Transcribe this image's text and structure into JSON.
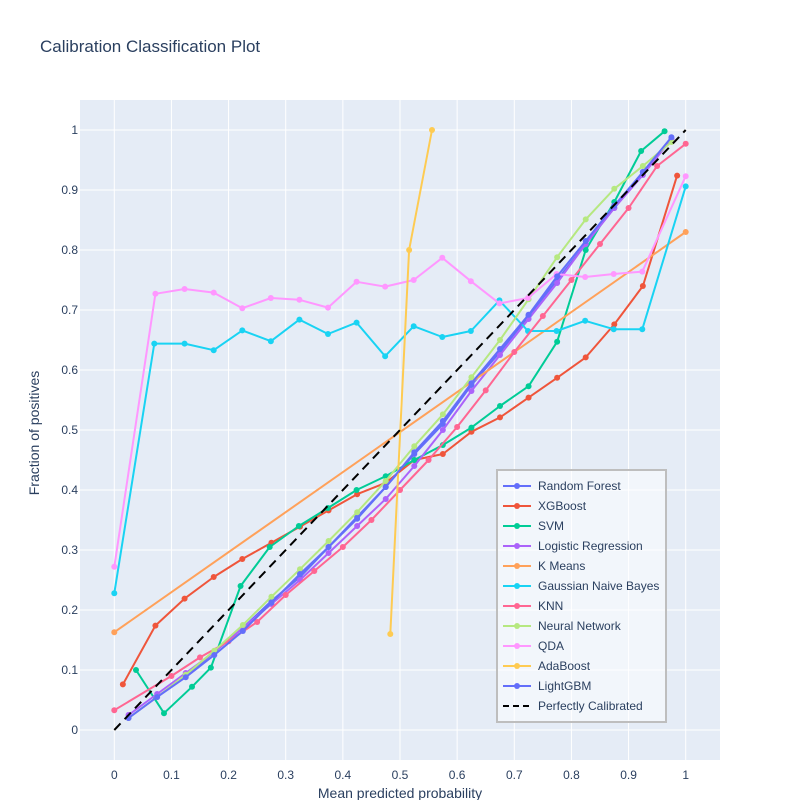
{
  "chart_data": {
    "type": "line",
    "title": "Calibration Classification Plot",
    "xlabel": "Mean predicted probability",
    "ylabel": "Fraction of positives",
    "xlim": [
      -0.06,
      1.06
    ],
    "ylim": [
      -0.05,
      1.05
    ],
    "xticks": [
      0,
      0.1,
      0.2,
      0.3,
      0.4,
      0.5,
      0.6,
      0.7,
      0.8,
      0.9,
      1
    ],
    "xtick_labels": [
      "0",
      "0.1",
      "0.2",
      "0.3",
      "0.4",
      "0.5",
      "0.6",
      "0.7",
      "0.8",
      "0.9",
      "1"
    ],
    "yticks": [
      0,
      0.1,
      0.2,
      0.3,
      0.4,
      0.5,
      0.6,
      0.7,
      0.8,
      0.9,
      1
    ],
    "ytick_labels": [
      "0",
      "0.1",
      "0.2",
      "0.3",
      "0.4",
      "0.5",
      "0.6",
      "0.7",
      "0.8",
      "0.9",
      "1"
    ],
    "grid": true,
    "legend_position": "bottom-right inside plot",
    "background_color": "#e5ecf6",
    "series": [
      {
        "name": "Random Forest",
        "color": "#636efa",
        "x": [
          0.025,
          0.075,
          0.125,
          0.175,
          0.225,
          0.275,
          0.325,
          0.375,
          0.425,
          0.475,
          0.525,
          0.575,
          0.625,
          0.675,
          0.725,
          0.775,
          0.825,
          0.875,
          0.925,
          0.975
        ],
        "y": [
          0.02,
          0.055,
          0.09,
          0.13,
          0.17,
          0.215,
          0.255,
          0.305,
          0.355,
          0.405,
          0.46,
          0.51,
          0.575,
          0.63,
          0.69,
          0.75,
          0.81,
          0.87,
          0.93,
          0.985
        ]
      },
      {
        "name": "XGBoost",
        "color": "#EF553B",
        "x": [
          0.015,
          0.072,
          0.123,
          0.174,
          0.224,
          0.275,
          0.325,
          0.375,
          0.425,
          0.475,
          0.525,
          0.575,
          0.625,
          0.675,
          0.725,
          0.775,
          0.825,
          0.875,
          0.925,
          0.985
        ],
        "y": [
          0.076,
          0.174,
          0.219,
          0.255,
          0.285,
          0.312,
          0.339,
          0.366,
          0.393,
          0.412,
          0.45,
          0.46,
          0.497,
          0.521,
          0.554,
          0.587,
          0.621,
          0.676,
          0.74,
          0.924
        ]
      },
      {
        "name": "SVM",
        "color": "#00cc96",
        "x": [
          0.038,
          0.087,
          0.136,
          0.169,
          0.221,
          0.272,
          0.323,
          0.374,
          0.424,
          0.475,
          0.525,
          0.575,
          0.625,
          0.675,
          0.725,
          0.775,
          0.825,
          0.875,
          0.922,
          0.963
        ],
        "y": [
          0.1,
          0.028,
          0.072,
          0.104,
          0.24,
          0.305,
          0.34,
          0.37,
          0.4,
          0.423,
          0.45,
          0.475,
          0.504,
          0.54,
          0.573,
          0.647,
          0.8,
          0.88,
          0.965,
          0.998
        ]
      },
      {
        "name": "Logistic Regression",
        "color": "#ab63fa",
        "x": [
          0.025,
          0.075,
          0.125,
          0.175,
          0.225,
          0.275,
          0.325,
          0.375,
          0.425,
          0.475,
          0.525,
          0.575,
          0.625,
          0.675,
          0.725,
          0.775,
          0.825,
          0.875,
          0.925,
          0.975
        ],
        "y": [
          0.025,
          0.06,
          0.095,
          0.13,
          0.17,
          0.21,
          0.25,
          0.295,
          0.34,
          0.385,
          0.44,
          0.5,
          0.565,
          0.625,
          0.685,
          0.745,
          0.81,
          0.87,
          0.925,
          0.985
        ]
      },
      {
        "name": "K Means",
        "color": "#FFA15A",
        "x": [
          0,
          1
        ],
        "y": [
          0.163,
          0.83
        ]
      },
      {
        "name": "Gaussian Naive Bayes",
        "color": "#19d3f3",
        "x": [
          0,
          0.07,
          0.123,
          0.174,
          0.224,
          0.274,
          0.324,
          0.374,
          0.424,
          0.474,
          0.524,
          0.574,
          0.624,
          0.674,
          0.724,
          0.774,
          0.824,
          0.874,
          0.924,
          1
        ],
        "y": [
          0.228,
          0.644,
          0.644,
          0.633,
          0.666,
          0.648,
          0.684,
          0.66,
          0.679,
          0.623,
          0.673,
          0.655,
          0.665,
          0.716,
          0.665,
          0.665,
          0.682,
          0.668,
          0.668,
          0.906
        ]
      },
      {
        "name": "KNN",
        "color": "#FF6692",
        "x": [
          0,
          0.1,
          0.15,
          0.2,
          0.25,
          0.3,
          0.35,
          0.4,
          0.45,
          0.5,
          0.55,
          0.6,
          0.65,
          0.7,
          0.75,
          0.8,
          0.85,
          0.9,
          0.95,
          1
        ],
        "y": [
          0.033,
          0.09,
          0.121,
          0.148,
          0.18,
          0.225,
          0.265,
          0.305,
          0.35,
          0.4,
          0.45,
          0.505,
          0.566,
          0.63,
          0.69,
          0.75,
          0.81,
          0.87,
          0.94,
          0.977
        ]
      },
      {
        "name": "Neural Network",
        "color": "#B6E880",
        "x": [
          0.025,
          0.075,
          0.125,
          0.175,
          0.225,
          0.275,
          0.325,
          0.375,
          0.425,
          0.475,
          0.525,
          0.575,
          0.625,
          0.675,
          0.725,
          0.775,
          0.825,
          0.875,
          0.925,
          0.975
        ],
        "y": [
          0.02,
          0.055,
          0.092,
          0.132,
          0.175,
          0.222,
          0.268,
          0.315,
          0.363,
          0.415,
          0.473,
          0.526,
          0.588,
          0.65,
          0.718,
          0.788,
          0.851,
          0.902,
          0.94,
          0.98
        ]
      },
      {
        "name": "QDA",
        "color": "#FF97FF",
        "x": [
          0,
          0.072,
          0.123,
          0.174,
          0.224,
          0.274,
          0.324,
          0.374,
          0.424,
          0.474,
          0.524,
          0.574,
          0.624,
          0.674,
          0.724,
          0.774,
          0.824,
          0.874,
          0.924,
          1
        ],
        "y": [
          0.272,
          0.727,
          0.735,
          0.729,
          0.703,
          0.72,
          0.717,
          0.704,
          0.747,
          0.739,
          0.75,
          0.787,
          0.748,
          0.711,
          0.72,
          0.76,
          0.755,
          0.76,
          0.764,
          0.923
        ]
      },
      {
        "name": "AdaBoost",
        "color": "#FECB52",
        "x": [
          0.483,
          0.516,
          0.556
        ],
        "y": [
          0.16,
          0.8,
          1.0
        ]
      },
      {
        "name": "LightGBM",
        "color": "#636efa",
        "x": [
          0.025,
          0.075,
          0.125,
          0.175,
          0.225,
          0.275,
          0.325,
          0.375,
          0.425,
          0.475,
          0.525,
          0.575,
          0.625,
          0.675,
          0.725,
          0.775,
          0.825,
          0.875,
          0.925,
          0.975
        ],
        "y": [
          0.02,
          0.055,
          0.088,
          0.125,
          0.165,
          0.212,
          0.26,
          0.305,
          0.352,
          0.405,
          0.463,
          0.515,
          0.578,
          0.635,
          0.692,
          0.756,
          0.815,
          0.874,
          0.93,
          0.988
        ]
      },
      {
        "name": "Perfectly Calibrated",
        "color": "#000000",
        "dash": true,
        "markers": false,
        "x": [
          0,
          1
        ],
        "y": [
          0,
          1
        ]
      }
    ]
  }
}
